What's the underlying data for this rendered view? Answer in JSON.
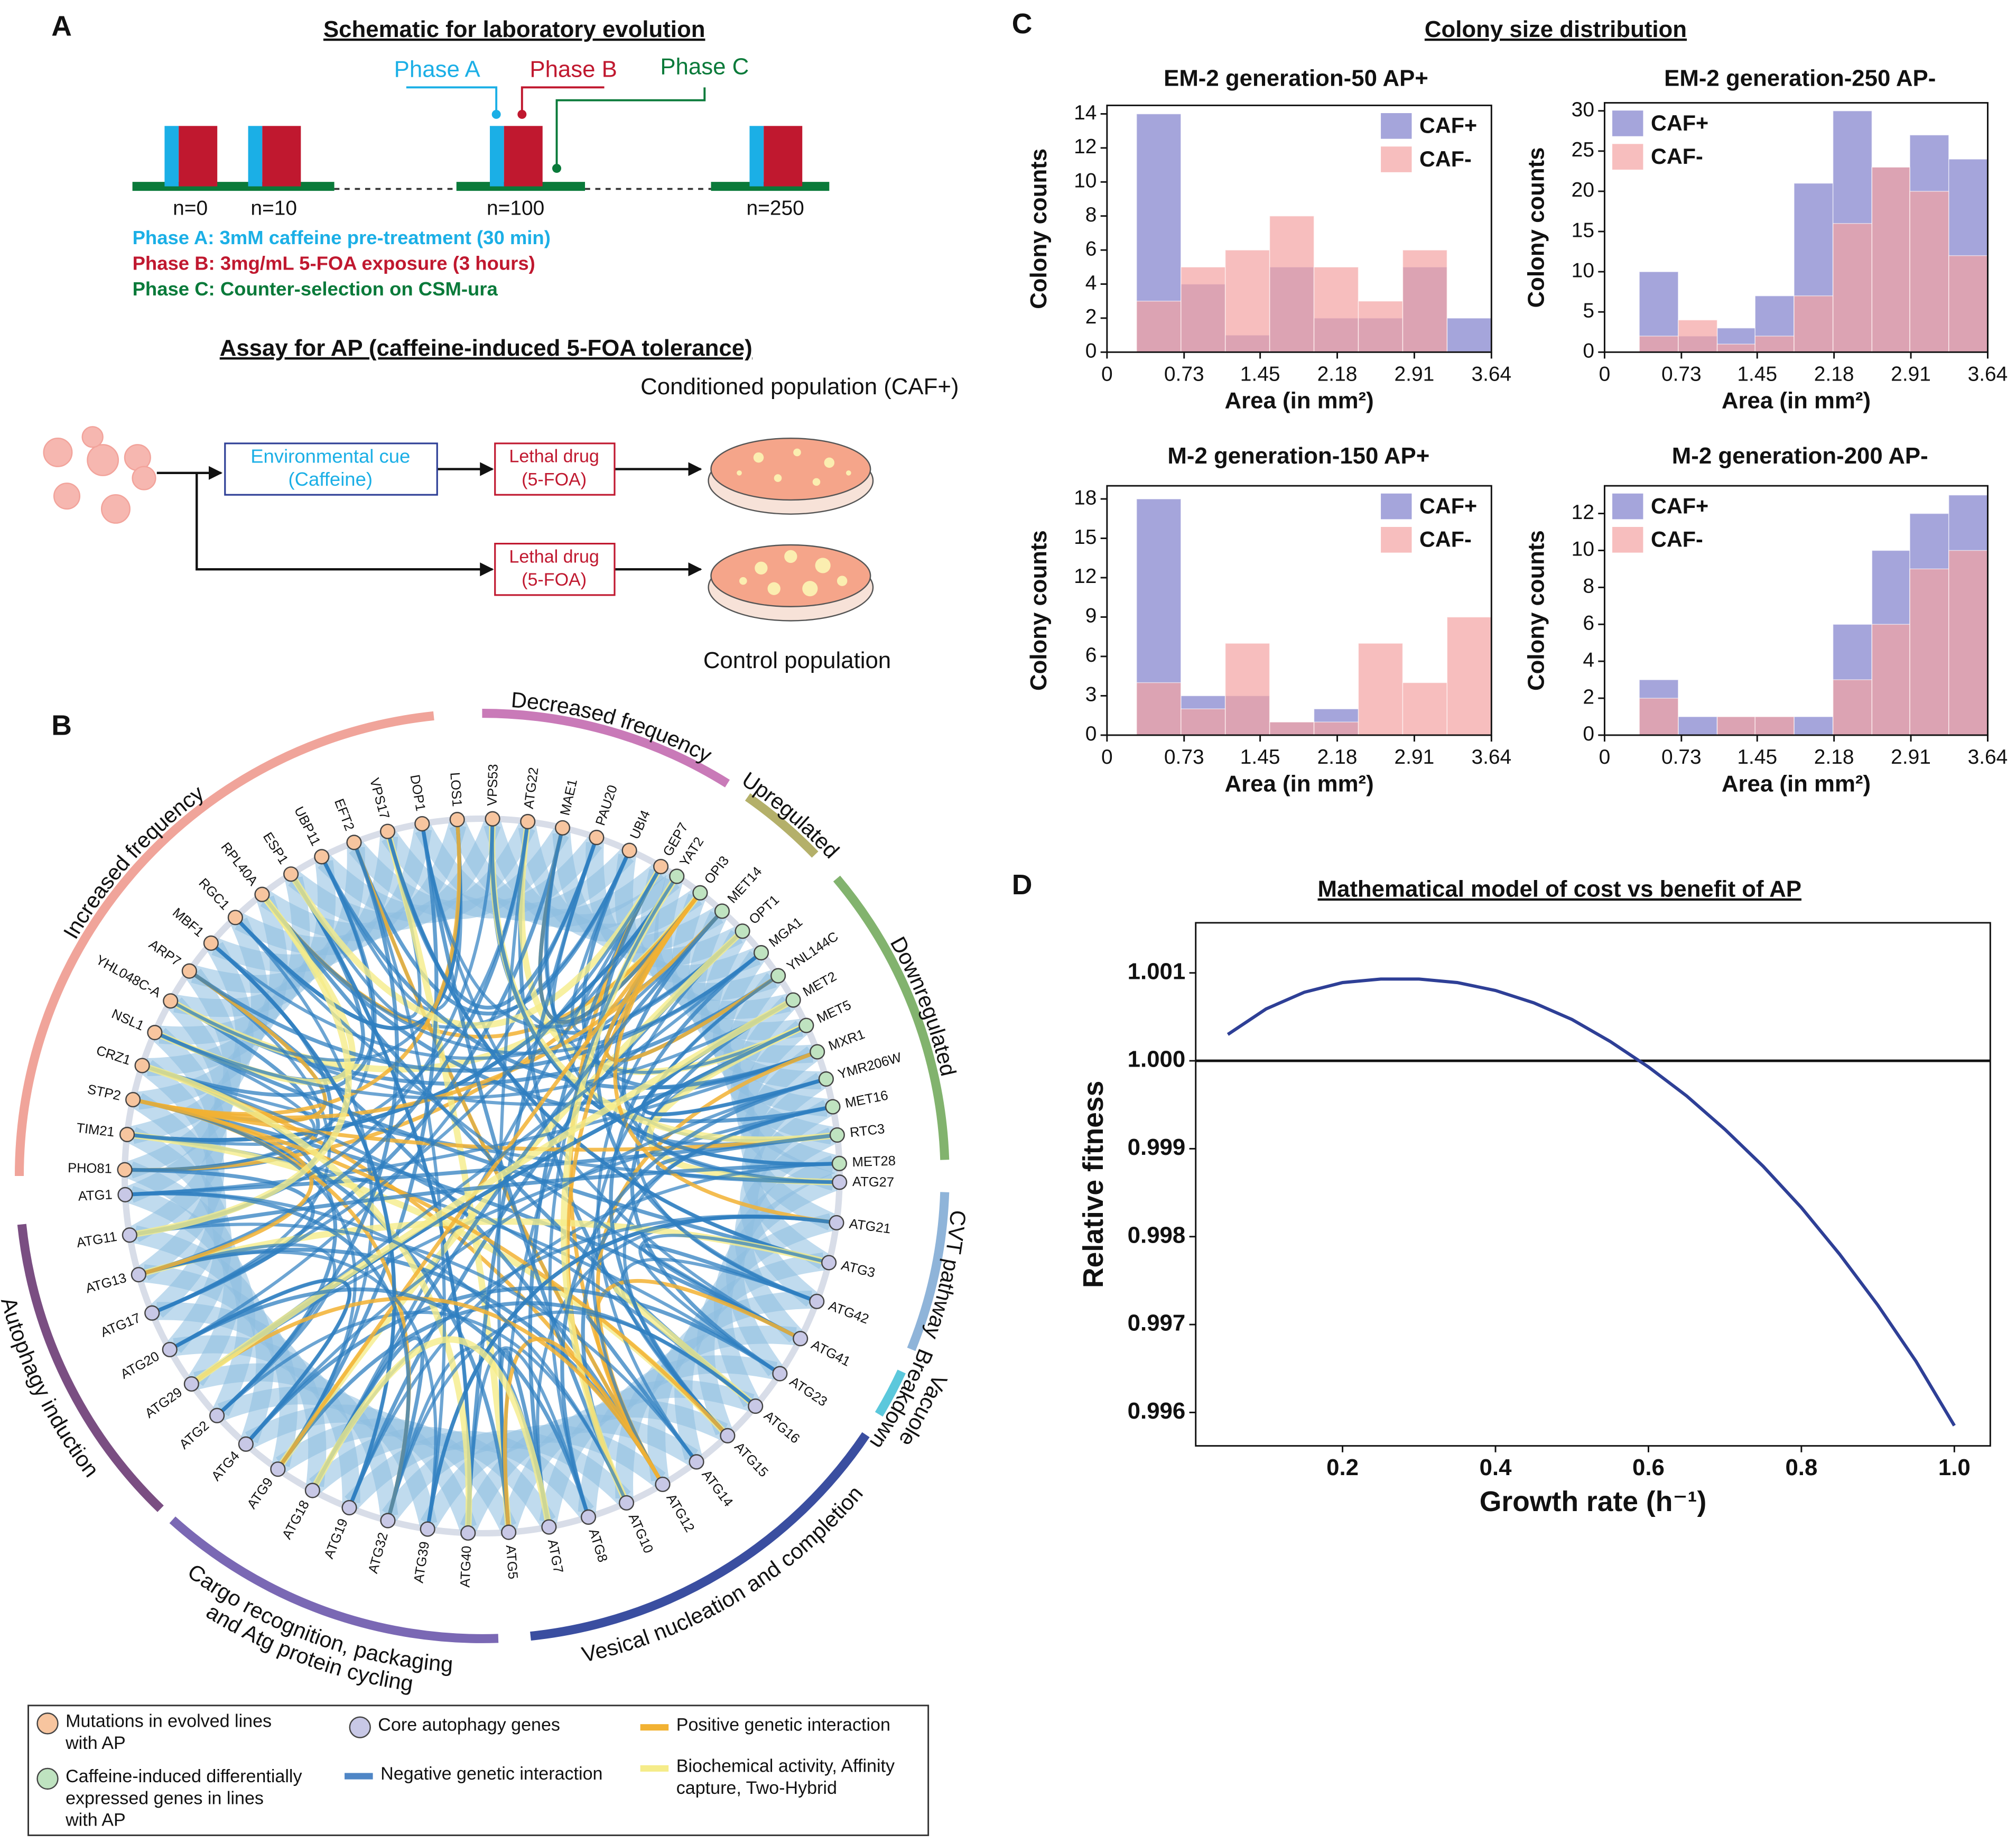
{
  "panel_labels": [
    "A",
    "B",
    "C",
    "D"
  ],
  "schematic": {
    "title": "Schematic for laboratory evolution",
    "phases": [
      {
        "label": "Phase A",
        "color": "#1bafe6"
      },
      {
        "label": "Phase B",
        "color": "#c0182f"
      },
      {
        "label": "Phase C",
        "color": "#0a7a3a"
      }
    ],
    "generations": [
      "n=0",
      "n=10",
      "n=100",
      "n=250"
    ],
    "descriptions": [
      "Phase A: 3mM caffeine pre-treatment (30 min)",
      "Phase B: 3mg/mL 5-FOA exposure (3 hours)",
      "Phase C: Counter-selection on CSM-ura"
    ],
    "assay_title": "Assay for AP (caffeine-induced 5-FOA tolerance)",
    "cue": [
      "Environmental cue",
      "(Caffeine)"
    ],
    "drug": [
      "Lethal drug",
      "(5-FOA)"
    ],
    "conditioned": "Conditioned population (CAF+)",
    "control": "Control population"
  },
  "network": {
    "groups": [
      {
        "label": [
          "Increased frequency"
        ],
        "color": "#f0a49a"
      },
      {
        "label": [
          "Decreased frequency"
        ],
        "color": "#c97ab8"
      },
      {
        "label": [
          "Upregulated"
        ],
        "color": "#b4b06a"
      },
      {
        "label": [
          "Downregulated"
        ],
        "color": "#82b36e"
      },
      {
        "label": [
          "CVT pathway"
        ],
        "color": "#8fb4d9"
      },
      {
        "label": [
          "Vacuole",
          "Breakdown"
        ],
        "color": "#5bc8dc"
      },
      {
        "label": [
          "Vesical nucleation and completion"
        ],
        "color": "#3a4ea0"
      },
      {
        "label": [
          "Cargo recognition, packaging",
          "and Atg protein cycling"
        ],
        "color": "#7a68b4"
      },
      {
        "label": [
          "Autophagy induction"
        ],
        "color": "#7a4e82"
      }
    ],
    "nodes": [
      {
        "color": "#f7c59f",
        "genes": [
          "PHO81",
          "TIM21",
          "STP2",
          "CRZ1",
          "NSL1",
          "YHL048C-A",
          "ARP7",
          "MBF1",
          "RGC1",
          "RPL40A",
          "ESP1",
          "UBP11",
          "EFT2",
          "VPS17",
          "DOP1",
          "LOS1",
          "VPS53",
          "ATG22",
          "MAE1",
          "PAU20",
          "UBI4",
          "GEP7"
        ]
      },
      {
        "color": "#bfe3c0",
        "genes": [
          "YAT2",
          "OPI3",
          "MET14",
          "OPT1",
          "MGA1",
          "YNL144C",
          "MET2",
          "MET5",
          "MXR1",
          "YMR206W",
          "MET16",
          "RTC3",
          "MET28"
        ]
      },
      {
        "color": "#c8c8e6",
        "genes": [
          "ATG27",
          "ATG21",
          "ATG3",
          "ATG42",
          "ATG41",
          "ATG23",
          "ATG16",
          "ATG15",
          "ATG14",
          "ATG12",
          "ATG10",
          "ATG8",
          "ATG7",
          "ATG5",
          "ATG40",
          "ATG39",
          "ATG32",
          "ATG19",
          "ATG18",
          "ATG9",
          "ATG4",
          "ATG2",
          "ATG29",
          "ATG20",
          "ATG17",
          "ATG13",
          "ATG11",
          "ATG1"
        ]
      }
    ],
    "legend": [
      {
        "marker": "circle",
        "color": "#f7c59f",
        "text": [
          "Mutations in evolved lines",
          "with AP"
        ]
      },
      {
        "marker": "circle",
        "color": "#bfe3c0",
        "text": [
          "Caffeine-induced differentially",
          "expressed genes in lines",
          "with AP"
        ]
      },
      {
        "marker": "circle",
        "color": "#c8c8e6",
        "text": [
          "Core autophagy genes"
        ]
      },
      {
        "marker": "line",
        "color": "#4f86c6",
        "text": [
          "Negative genetic interaction"
        ]
      },
      {
        "marker": "line",
        "color": "#f2b233",
        "text": [
          "Positive genetic interaction"
        ]
      },
      {
        "marker": "line",
        "color": "#f5ec8a",
        "text": [
          "Biochemical activity, Affinity",
          "capture, Two-Hybrid"
        ]
      }
    ]
  },
  "colony_title": "Colony size distribution",
  "model_title": "Mathematical model of cost vs benefit of AP",
  "chart_data": [
    {
      "type": "histogram",
      "title": "EM-2 generation-50 AP+",
      "x_label": "Area (in mm²)",
      "y_label": "Colony counts",
      "bins": [
        0.28,
        0.7,
        1.12,
        1.54,
        1.96,
        2.38,
        2.8,
        3.22,
        3.64
      ],
      "series": [
        {
          "name": "CAF+",
          "color": "#7f7fcc",
          "values": [
            14,
            4,
            1,
            5,
            2,
            2,
            5,
            2
          ]
        },
        {
          "name": "CAF-",
          "color": "#f4a3a3",
          "values": [
            3,
            5,
            6,
            8,
            5,
            3,
            6,
            0
          ]
        }
      ],
      "xlim": [
        0,
        3.64
      ],
      "xticks": [
        0,
        0.73,
        1.45,
        2.18,
        2.91,
        3.64
      ],
      "ylim": [
        0,
        14.5
      ],
      "yticks": [
        0,
        2,
        4,
        6,
        8,
        10,
        12,
        14
      ],
      "legend": "upper right"
    },
    {
      "type": "histogram",
      "title": "EM-2 generation-250 AP-",
      "x_label": "Area (in mm²)",
      "y_label": "Colony counts",
      "bins": [
        0.33,
        0.7,
        1.07,
        1.43,
        1.8,
        2.17,
        2.54,
        2.9,
        3.27,
        3.64
      ],
      "series": [
        {
          "name": "CAF+",
          "color": "#7f7fcc",
          "values": [
            10,
            2,
            3,
            7,
            21,
            30,
            23,
            27,
            24
          ]
        },
        {
          "name": "CAF-",
          "color": "#f4a3a3",
          "values": [
            2,
            4,
            1,
            2,
            7,
            16,
            23,
            20,
            12
          ]
        }
      ],
      "xlim": [
        0,
        3.64
      ],
      "xticks": [
        0,
        0.73,
        1.45,
        2.18,
        2.91,
        3.64
      ],
      "ylim": [
        0,
        31
      ],
      "yticks": [
        0,
        5,
        10,
        15,
        20,
        25,
        30
      ],
      "legend": "upper left"
    },
    {
      "type": "histogram",
      "title": "M-2 generation-150 AP+",
      "x_label": "Area (in mm²)",
      "y_label": "Colony counts",
      "bins": [
        0.28,
        0.7,
        1.12,
        1.54,
        1.96,
        2.38,
        2.8,
        3.22,
        3.64
      ],
      "series": [
        {
          "name": "CAF+",
          "color": "#7f7fcc",
          "values": [
            18,
            3,
            3,
            1,
            2,
            0,
            0,
            0
          ]
        },
        {
          "name": "CAF-",
          "color": "#f4a3a3",
          "values": [
            4,
            2,
            7,
            1,
            1,
            7,
            4,
            9
          ]
        }
      ],
      "xlim": [
        0,
        3.64
      ],
      "xticks": [
        0,
        0.73,
        1.45,
        2.18,
        2.91,
        3.64
      ],
      "ylim": [
        0,
        19
      ],
      "yticks": [
        0,
        3,
        6,
        9,
        12,
        15,
        18
      ],
      "legend": "upper right"
    },
    {
      "type": "histogram",
      "title": "M-2 generation-200 AP-",
      "x_label": "Area (in mm²)",
      "y_label": "Colony counts",
      "bins": [
        0.33,
        0.7,
        1.07,
        1.43,
        1.8,
        2.17,
        2.54,
        2.9,
        3.27,
        3.64
      ],
      "series": [
        {
          "name": "CAF+",
          "color": "#7f7fcc",
          "values": [
            3,
            1,
            1,
            1,
            1,
            6,
            10,
            12,
            13
          ]
        },
        {
          "name": "CAF-",
          "color": "#f4a3a3",
          "values": [
            2,
            0,
            1,
            1,
            0,
            3,
            6,
            9,
            10
          ]
        }
      ],
      "xlim": [
        0,
        3.64
      ],
      "xticks": [
        0,
        0.73,
        1.45,
        2.18,
        2.91,
        3.64
      ],
      "ylim": [
        0,
        13.5
      ],
      "yticks": [
        0,
        2,
        4,
        6,
        8,
        10,
        12
      ],
      "legend": "upper left"
    },
    {
      "type": "line",
      "x_label": "Growth rate (h⁻¹)",
      "y_label": "Relative fitness",
      "color": "#2e3f96",
      "x": [
        0.05,
        0.1,
        0.15,
        0.2,
        0.25,
        0.3,
        0.35,
        0.4,
        0.45,
        0.5,
        0.55,
        0.6,
        0.65,
        0.7,
        0.75,
        0.8,
        0.85,
        0.9,
        0.95,
        1.0
      ],
      "values": [
        1.0003,
        1.00059,
        1.00078,
        1.00089,
        1.00093,
        1.00093,
        1.00089,
        1.0008,
        1.00066,
        1.00047,
        1.00022,
        0.99993,
        0.9996,
        0.99922,
        0.9988,
        0.99833,
        0.9978,
        0.99722,
        0.99658,
        0.99585
      ],
      "xlim": [
        0.008,
        1.047
      ],
      "xticks": [
        0.2,
        0.4,
        0.6,
        0.8,
        {
          "value": 1,
          "label": "1.0"
        }
      ],
      "ylim": [
        0.99562,
        1.00157
      ],
      "yticks": [
        0.996,
        0.997,
        0.998,
        0.999,
        {
          "value": 1,
          "label": "1.000"
        },
        1.001
      ],
      "hline": 1
    }
  ]
}
